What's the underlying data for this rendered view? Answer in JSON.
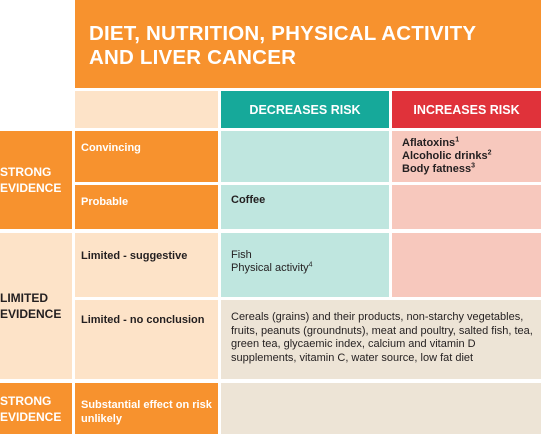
{
  "title": {
    "line1": "DIET, NUTRITION, PHYSICAL ACTIVITY",
    "line2": "AND LIVER CANCER"
  },
  "columns": {
    "decreases": "DECREASES RISK",
    "increases": "INCREASES RISK"
  },
  "evidence_groups": {
    "strong_top": [
      "STRONG",
      "EVIDENCE"
    ],
    "limited": [
      "LIMITED",
      "EVIDENCE"
    ],
    "strong_bottom": [
      "STRONG",
      "EVIDENCE"
    ]
  },
  "rows": {
    "convincing": {
      "label": "Convincing",
      "increases": [
        {
          "text": "Aflatoxins",
          "note": "1"
        },
        {
          "text": "Alcoholic drinks",
          "note": "2"
        },
        {
          "text": "Body fatness",
          "note": "3"
        }
      ]
    },
    "probable": {
      "label": "Probable",
      "decreases": "Coffee"
    },
    "limited_suggestive": {
      "label": "Limited - suggestive",
      "decreases": [
        {
          "text": "Fish",
          "note": ""
        },
        {
          "text": "Physical activity",
          "note": "4"
        }
      ]
    },
    "limited_no_conclusion": {
      "label": "Limited - no conclusion",
      "text": "Cereals (grains) and their products, non-starchy vegetables, fruits, peanuts (groundnuts), meat and poultry, salted fish, tea, green tea, glycaemic index, calcium and vitamin D supplements, vitamin C, water source, low fat diet"
    },
    "substantial": {
      "label": "Substantial effect on risk unlikely"
    }
  },
  "colors": {
    "orange": "#f7922e",
    "peach": "#fde3c8",
    "teal": "#16a99a",
    "teal_light": "#bfe6df",
    "red": "#e0323a",
    "pink": "#f7c8bd",
    "beige": "#ede4d6"
  }
}
